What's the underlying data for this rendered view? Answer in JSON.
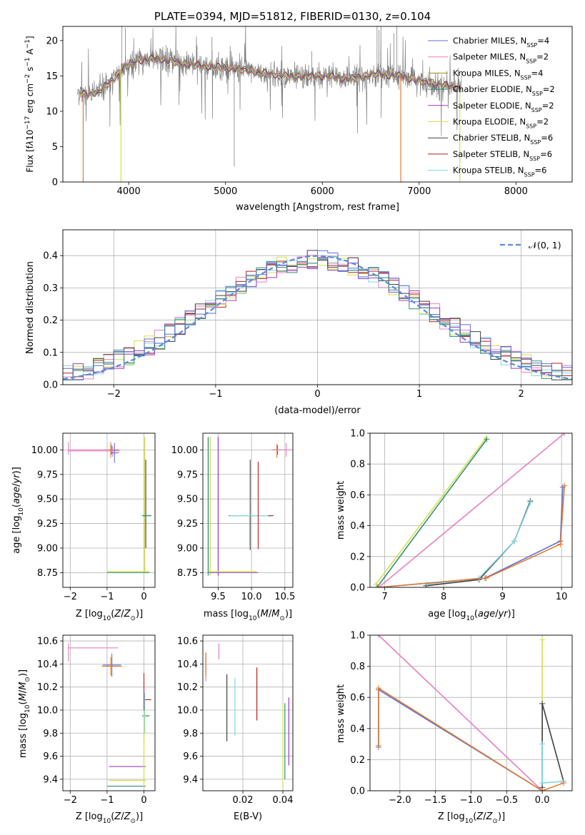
{
  "figure_title": "PLATE=0394, MJD=51812, FIBERID=0130, z=0.104",
  "chart_data": [
    {
      "id": "spectrum",
      "type": "line",
      "xlabel": "wavelength [Angstrom, rest frame]",
      "ylabel": "Flux [f_λ10^-17 erg cm^-2 s^-1 A^-1]",
      "xlim": [
        3320,
        8580
      ],
      "ylim": [
        0,
        22
      ],
      "xticks": [
        4000,
        5000,
        6000,
        7000,
        8000
      ],
      "yticks": [
        0,
        5,
        10,
        15,
        20
      ],
      "grid": false,
      "legend_position": "top-right",
      "series": [
        {
          "name": "Chabrier MILES, N_SSP=4",
          "color": "#5b6fd6"
        },
        {
          "name": "Salpeter MILES, N_SSP=2",
          "color": "#e87fc0"
        },
        {
          "name": "Kroupa MILES, N_SSP=4",
          "color": "#a08a10"
        },
        {
          "name": "Chabrier ELODIE, N_SSP=2",
          "color": "#2f8f7a"
        },
        {
          "name": "Salpeter ELODIE, N_SSP=2",
          "color": "#9a3fbf"
        },
        {
          "name": "Kroupa ELODIE, N_SSP=2",
          "color": "#d4e04a"
        },
        {
          "name": "Chabrier STELIB, N_SSP=6",
          "color": "#404040"
        },
        {
          "name": "Salpeter STELIB, N_SSP=6",
          "color": "#b22222"
        },
        {
          "name": "Kroupa STELIB, N_SSP=6",
          "color": "#7fd6e0"
        }
      ],
      "data_series": {
        "name": "data",
        "color": "#808080"
      },
      "fit_color": "#e07b30",
      "continuum_nodes": {
        "x": [
          3470,
          3560,
          3700,
          3850,
          3950,
          4100,
          4300,
          4600,
          4900,
          5100,
          5400,
          5700,
          6000,
          6300,
          6550,
          6800,
          7000,
          7200,
          7400
        ],
        "y": [
          12.8,
          12.3,
          12.9,
          14.6,
          16.3,
          17.2,
          17.5,
          16.6,
          16.3,
          16.0,
          15.4,
          14.9,
          15.0,
          14.6,
          15.3,
          15.0,
          14.3,
          13.8,
          13.4
        ]
      },
      "model_dropouts": [
        {
          "lambda": 3530,
          "depth": 0.0
        },
        {
          "lambda": 3920,
          "depth": 0.0
        },
        {
          "lambda": 6810,
          "depth": 0.0
        },
        {
          "lambda": 7420,
          "depth": 0.0
        }
      ]
    },
    {
      "id": "residuals",
      "type": "line",
      "xlabel": "(data-model)/error",
      "ylabel": "Normed distribution",
      "xlim": [
        -2.5,
        2.5
      ],
      "ylim": [
        0,
        0.48
      ],
      "xticks": [
        -2,
        -1,
        0,
        1,
        2
      ],
      "yticks": [
        0.0,
        0.1,
        0.2,
        0.3,
        0.4
      ],
      "grid": true,
      "legend_position": "top-right",
      "reference": {
        "name": "𝒩(0, 1)",
        "color": "#5b8bd9",
        "style": "dashed"
      },
      "bin_width": 0.1
    },
    {
      "id": "age-vs-Z",
      "type": "scatter",
      "xlabel": "Z [log10(Z/Z⊙)]",
      "ylabel": "age  [log10(age/yr)]",
      "xlim": [
        -2.2,
        0.3
      ],
      "ylim": [
        8.6,
        10.17
      ],
      "xticks": [
        -2,
        -1,
        0
      ],
      "yticks": [
        8.75,
        9.0,
        9.25,
        9.5,
        9.75,
        10.0
      ],
      "grid": true
    },
    {
      "id": "age-vs-mass",
      "type": "scatter",
      "xlabel": "mass [log10(M/M⊙)]",
      "ylabel": "",
      "xlim": [
        9.27,
        10.62
      ],
      "ylim": [
        8.6,
        10.17
      ],
      "xticks": [
        9.5,
        10.0,
        10.5
      ],
      "yticks": [
        8.75,
        9.0,
        9.25,
        9.5,
        9.75,
        10.0
      ],
      "grid": true
    },
    {
      "id": "massweight-vs-age",
      "type": "line",
      "xlabel": "age  [log10(age/yr)]",
      "ylabel": "mass weight",
      "xlim": [
        6.75,
        10.18
      ],
      "ylim": [
        0,
        1
      ],
      "xticks": [
        7,
        8,
        9,
        10
      ],
      "yticks": [
        0.0,
        0.2,
        0.4,
        0.6,
        0.8,
        1.0
      ],
      "grid": true
    },
    {
      "id": "mass-vs-Z",
      "type": "scatter",
      "xlabel": "Z [log10(Z/Z⊙)]",
      "ylabel": "mass [log10(M/M⊙)]",
      "xlim": [
        -2.2,
        0.3
      ],
      "ylim": [
        9.3,
        10.65
      ],
      "xticks": [
        -2,
        -1,
        0
      ],
      "yticks": [
        9.4,
        9.6,
        9.8,
        10.0,
        10.2,
        10.4,
        10.6
      ],
      "grid": true
    },
    {
      "id": "mass-vs-EBV",
      "type": "scatter",
      "xlabel": "E(B-V)",
      "ylabel": "",
      "xlim": [
        0.0,
        0.045
      ],
      "ylim": [
        9.3,
        10.65
      ],
      "xticks": [
        0.02,
        0.04
      ],
      "yticks": [
        9.4,
        9.6,
        9.8,
        10.0,
        10.2,
        10.4,
        10.6
      ],
      "grid": true
    },
    {
      "id": "massweight-vs-Z",
      "type": "line",
      "xlabel": "Z [log10(Z/Z⊙)]",
      "ylabel": "mass weight",
      "xlim": [
        -2.42,
        0.42
      ],
      "ylim": [
        0,
        1
      ],
      "xticks": [
        -2.0,
        -1.5,
        -1.0,
        -0.5,
        0.0
      ],
      "yticks": [
        0.0,
        0.2,
        0.4,
        0.6,
        0.8,
        1.0
      ],
      "grid": true
    }
  ]
}
